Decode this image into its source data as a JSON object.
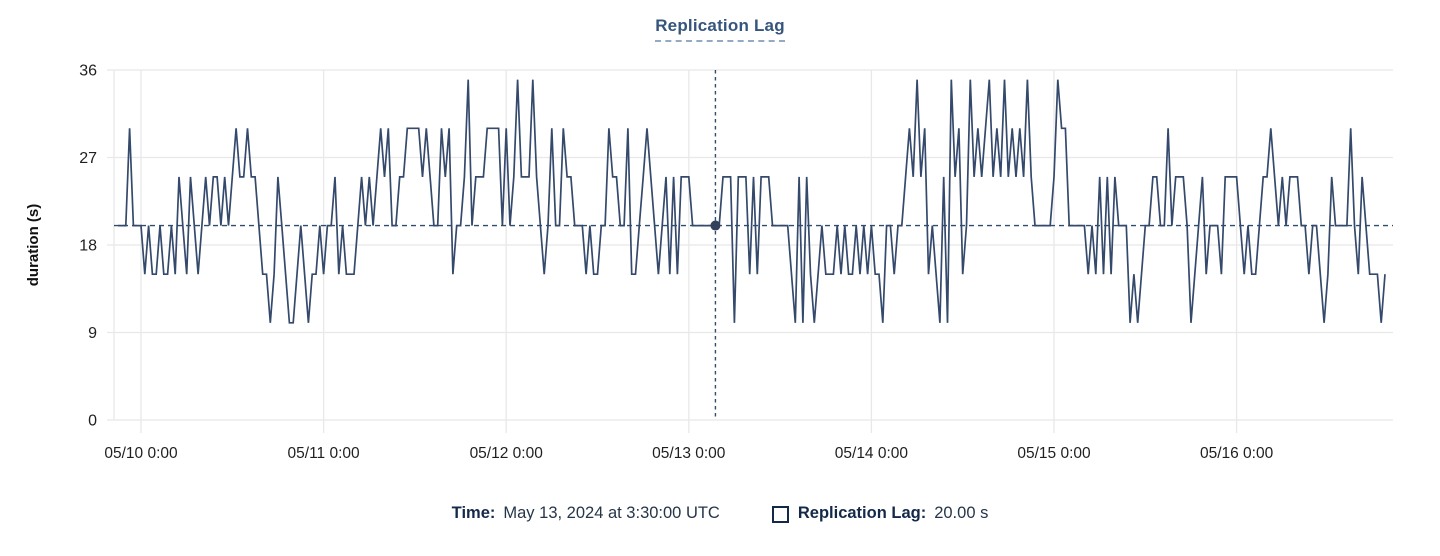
{
  "title": "Replication Lag",
  "y_axis": {
    "label": "duration (s)",
    "ticks": [
      0,
      9,
      18,
      27,
      36
    ]
  },
  "x_axis": {
    "tick_labels": [
      "05/10 0:00",
      "05/11 0:00",
      "05/12 0:00",
      "05/13 0:00",
      "05/14 0:00",
      "05/15 0:00",
      "05/16 0:00"
    ]
  },
  "footer": {
    "time_label": "Time:",
    "time_value": "May 13, 2024 at 3:30:00 UTC",
    "series_label": "Replication Lag:",
    "series_value": "20.00 s"
  },
  "colors": {
    "series": "#34496b",
    "cursor": "#2f4d6f",
    "grid": "#e8e8e8",
    "tick_text": "#1f1f1f",
    "title": "#36557c",
    "footer_label": "#14294a"
  },
  "chart_data": {
    "type": "line",
    "title": "Replication Lag",
    "xlabel": "",
    "ylabel": "duration (s)",
    "ylim": [
      0,
      36
    ],
    "y_ticks": [
      0,
      9,
      18,
      27,
      36
    ],
    "x_tick_labels": [
      "05/10 0:00",
      "05/11 0:00",
      "05/12 0:00",
      "05/13 0:00",
      "05/14 0:00",
      "05/15 0:00",
      "05/16 0:00"
    ],
    "grid": true,
    "interval_minutes": 30,
    "start_offset_hours": -3,
    "reference_line_y": 20,
    "cursor": {
      "index": 157,
      "value": 20,
      "time": "May 13, 2024 at 3:30:00 UTC"
    },
    "series": [
      {
        "name": "Replication Lag",
        "unit": "s",
        "values": [
          20,
          20,
          20,
          30,
          20,
          20,
          20,
          15,
          20,
          15,
          15,
          20,
          15,
          15,
          20,
          15,
          25,
          20,
          15,
          25,
          20,
          15,
          20,
          25,
          20,
          25,
          25,
          20,
          25,
          20,
          25,
          30,
          25,
          25,
          30,
          25,
          25,
          20,
          15,
          15,
          10,
          15,
          25,
          20,
          15,
          10,
          10,
          15,
          20,
          15,
          10,
          15,
          15,
          20,
          15,
          20,
          20,
          25,
          15,
          20,
          15,
          15,
          15,
          20,
          25,
          20,
          25,
          20,
          25,
          30,
          25,
          30,
          20,
          20,
          25,
          25,
          30,
          30,
          30,
          30,
          25,
          30,
          25,
          20,
          20,
          30,
          25,
          30,
          15,
          20,
          20,
          25,
          35,
          20,
          25,
          25,
          25,
          30,
          30,
          30,
          30,
          20,
          30,
          20,
          25,
          35,
          25,
          25,
          25,
          35,
          25,
          20,
          15,
          20,
          30,
          20,
          20,
          30,
          25,
          25,
          20,
          20,
          20,
          15,
          20,
          15,
          15,
          20,
          20,
          30,
          25,
          25,
          20,
          20,
          30,
          15,
          15,
          20,
          25,
          30,
          25,
          20,
          15,
          20,
          25,
          15,
          25,
          15,
          25,
          25,
          25,
          20,
          20,
          20,
          20,
          20,
          20,
          20,
          20,
          25,
          25,
          25,
          10,
          25,
          25,
          25,
          15,
          25,
          15,
          25,
          25,
          25,
          20,
          20,
          20,
          20,
          20,
          15,
          10,
          25,
          10,
          25,
          15,
          10,
          15,
          20,
          15,
          15,
          15,
          20,
          15,
          20,
          15,
          15,
          20,
          15,
          20,
          15,
          20,
          15,
          15,
          10,
          20,
          20,
          15,
          20,
          20,
          25,
          30,
          25,
          35,
          25,
          30,
          15,
          20,
          15,
          10,
          25,
          10,
          35,
          25,
          30,
          15,
          20,
          35,
          25,
          30,
          25,
          30,
          35,
          25,
          30,
          25,
          35,
          25,
          30,
          25,
          30,
          25,
          35,
          25,
          20,
          20,
          20,
          20,
          20,
          25,
          35,
          30,
          30,
          20,
          20,
          20,
          20,
          20,
          15,
          20,
          15,
          25,
          15,
          25,
          15,
          25,
          20,
          20,
          20,
          10,
          15,
          10,
          15,
          20,
          20,
          25,
          25,
          20,
          20,
          30,
          20,
          25,
          25,
          25,
          20,
          10,
          15,
          20,
          25,
          15,
          20,
          20,
          20,
          15,
          25,
          25,
          25,
          25,
          20,
          15,
          20,
          15,
          15,
          20,
          25,
          25,
          30,
          25,
          20,
          25,
          20,
          25,
          25,
          25,
          20,
          20,
          15,
          20,
          20,
          15,
          10,
          15,
          25,
          20,
          20,
          20,
          20,
          30,
          20,
          15,
          25,
          20,
          15,
          15,
          15,
          10,
          15
        ]
      }
    ]
  }
}
